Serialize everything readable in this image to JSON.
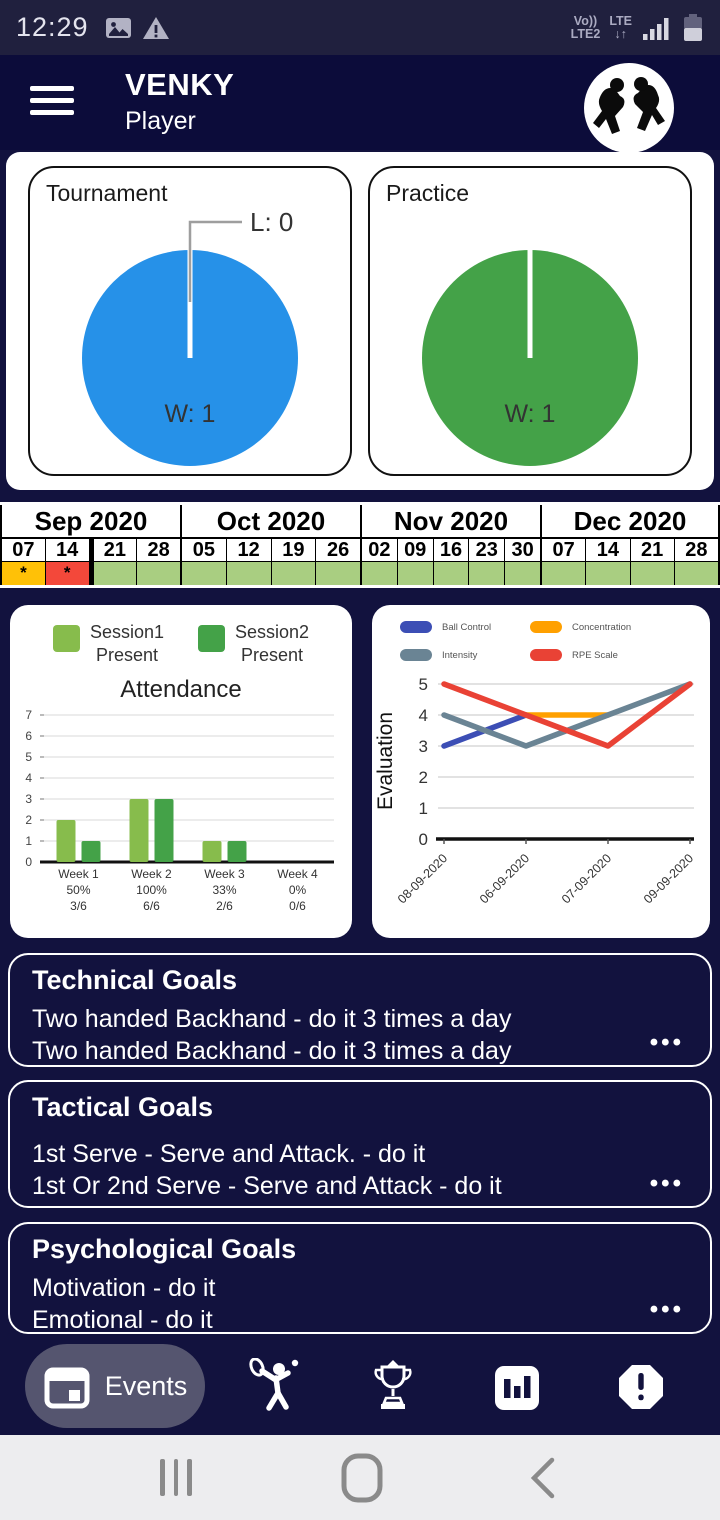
{
  "status_bar": {
    "time": "12:29",
    "carrier": {
      "line1": "Vo))",
      "line2": "LTE2"
    },
    "network": {
      "line1": "LTE",
      "line2": "↓↑"
    }
  },
  "header": {
    "title": "VENKY",
    "subtitle": "Player"
  },
  "chart_data": [
    {
      "type": "pie",
      "title": "Tournament",
      "labels": [
        "W",
        "L"
      ],
      "values": [
        1,
        0
      ],
      "colors": [
        "#2691E8"
      ],
      "annotations": [
        "W: 1",
        "L: 0"
      ]
    },
    {
      "type": "pie",
      "title": "Practice",
      "labels": [
        "W"
      ],
      "values": [
        1
      ],
      "colors": [
        "#44A248"
      ],
      "annotations": [
        "W: 1"
      ]
    },
    {
      "type": "bar",
      "title": "Attendance",
      "legend": [
        "Session1\nPresent",
        "Session2\nPresent"
      ],
      "colors": [
        "#87BC4C",
        "#44A248"
      ],
      "categories": [
        "Week 1",
        "Week 2",
        "Week 3",
        "Week 4"
      ],
      "category_sub": [
        [
          "50%",
          "3/6"
        ],
        [
          "100%",
          "6/6"
        ],
        [
          "33%",
          "2/6"
        ],
        [
          "0%",
          "0/6"
        ]
      ],
      "series": [
        {
          "name": "Session1 Present",
          "values": [
            2,
            3,
            1,
            0
          ]
        },
        {
          "name": "Session2 Present",
          "values": [
            1,
            3,
            1,
            0
          ]
        }
      ],
      "ylim": [
        0,
        7
      ],
      "yticks": [
        0,
        1,
        2,
        3,
        4,
        5,
        6,
        7
      ],
      "grid": true
    },
    {
      "type": "line",
      "ylabel": "Evaluation",
      "x": [
        "08-09-2020",
        "06-09-2020",
        "07-09-2020",
        "09-09-2020"
      ],
      "ylim": [
        0,
        5
      ],
      "yticks": [
        0,
        1,
        2,
        3,
        4,
        5
      ],
      "grid": true,
      "legend_position": "top-left",
      "series": [
        {
          "name": "Ball Control",
          "color": "#3C4EB5",
          "values": [
            3,
            4,
            null,
            null
          ]
        },
        {
          "name": "Concentration",
          "color": "#FFA000",
          "values": [
            null,
            4,
            4,
            null
          ]
        },
        {
          "name": "Intensity",
          "color": "#6A8494",
          "values": [
            4,
            3,
            4,
            5
          ]
        },
        {
          "name": "RPE Scale",
          "color": "#E94235",
          "values": [
            5,
            4,
            3,
            5
          ]
        }
      ]
    }
  ],
  "calendar": {
    "default_color": "#A9CE81",
    "months": [
      {
        "label": "Sep 2020",
        "cells": [
          {
            "date": "07",
            "mark": "*",
            "color": "#FFC107"
          },
          {
            "date": "14",
            "mark": "*",
            "color": "#F3483A",
            "thick_right": true
          },
          {
            "date": "21",
            "mark": "",
            "color": "#A9CE81"
          },
          {
            "date": "28",
            "mark": "",
            "color": "#A9CE81"
          }
        ]
      },
      {
        "label": "Oct 2020",
        "cells": [
          {
            "date": "05",
            "mark": "",
            "color": "#A9CE81"
          },
          {
            "date": "12",
            "mark": "",
            "color": "#A9CE81"
          },
          {
            "date": "19",
            "mark": "",
            "color": "#A9CE81"
          },
          {
            "date": "26",
            "mark": "",
            "color": "#A9CE81"
          }
        ]
      },
      {
        "label": "Nov 2020",
        "cells": [
          {
            "date": "02",
            "mark": "",
            "color": "#A9CE81"
          },
          {
            "date": "09",
            "mark": "",
            "color": "#A9CE81"
          },
          {
            "date": "16",
            "mark": "",
            "color": "#A9CE81"
          },
          {
            "date": "23",
            "mark": "",
            "color": "#A9CE81"
          },
          {
            "date": "30",
            "mark": "",
            "color": "#A9CE81"
          }
        ]
      },
      {
        "label": "Dec 2020",
        "cells": [
          {
            "date": "07",
            "mark": "",
            "color": "#A9CE81"
          },
          {
            "date": "14",
            "mark": "",
            "color": "#A9CE81"
          },
          {
            "date": "21",
            "mark": "",
            "color": "#A9CE81"
          },
          {
            "date": "28",
            "mark": "",
            "color": "#A9CE81"
          }
        ]
      }
    ]
  },
  "goals": [
    {
      "title": "Technical Goals",
      "items": [
        "Two handed Backhand - do it 3 times a day",
        "Two handed Backhand - do it 3 times a day"
      ],
      "more": "•••"
    },
    {
      "title": "Tactical Goals",
      "items": [
        "1st Serve - Serve and Attack. - do it",
        "1st Or 2nd Serve - Serve and Attack - do it"
      ],
      "more": "•••"
    },
    {
      "title": "Psychological Goals",
      "items": [
        "Motivation - do it",
        "Emotional - do it"
      ],
      "more": "•••"
    }
  ],
  "bottom_nav": {
    "events_label": "Events"
  }
}
